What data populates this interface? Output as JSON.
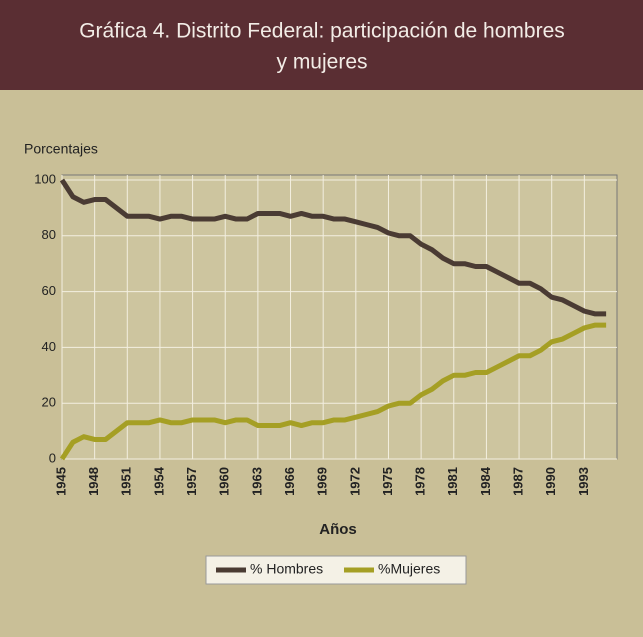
{
  "chart_data": {
    "type": "line",
    "title": "Gráfica 4.  Distrito Federal: participación de hombres",
    "subtitle": "y mujeres",
    "ylabel": "Porcentajes",
    "xlabel": "Años",
    "x": [
      1945,
      1946,
      1947,
      1948,
      1949,
      1950,
      1951,
      1952,
      1953,
      1954,
      1955,
      1956,
      1957,
      1958,
      1959,
      1960,
      1961,
      1962,
      1963,
      1964,
      1965,
      1966,
      1967,
      1968,
      1969,
      1970,
      1971,
      1972,
      1973,
      1974,
      1975,
      1976,
      1977,
      1978,
      1979,
      1980,
      1981,
      1982,
      1983,
      1984,
      1985,
      1986,
      1987,
      1988,
      1989,
      1990,
      1991,
      1992,
      1993,
      1994,
      1995
    ],
    "series": [
      {
        "name": "% Hombres",
        "color": "#4a3b33",
        "values": [
          100,
          94,
          92,
          93,
          93,
          90,
          87,
          87,
          87,
          86,
          87,
          87,
          86,
          86,
          86,
          87,
          86,
          86,
          88,
          88,
          88,
          87,
          88,
          87,
          87,
          86,
          86,
          85,
          84,
          83,
          81,
          80,
          80,
          77,
          75,
          72,
          70,
          70,
          69,
          69,
          67,
          65,
          63,
          63,
          61,
          58,
          57,
          55,
          53,
          52,
          52
        ]
      },
      {
        "name": "%Mujeres",
        "color": "#a59f24",
        "values": [
          0,
          6,
          8,
          7,
          7,
          10,
          13,
          13,
          13,
          14,
          13,
          13,
          14,
          14,
          14,
          13,
          14,
          14,
          12,
          12,
          12,
          13,
          12,
          13,
          13,
          14,
          14,
          15,
          16,
          17,
          19,
          20,
          20,
          23,
          25,
          28,
          30,
          30,
          31,
          31,
          33,
          35,
          37,
          37,
          39,
          42,
          43,
          45,
          47,
          48,
          48
        ]
      }
    ],
    "xlim": [
      1945,
      1996
    ],
    "ylim": [
      0,
      100
    ],
    "xticks": [
      1945,
      1948,
      1951,
      1954,
      1957,
      1960,
      1963,
      1966,
      1969,
      1972,
      1975,
      1978,
      1981,
      1984,
      1987,
      1990,
      1993
    ],
    "yticks": [
      0,
      20,
      40,
      60,
      80,
      100
    ],
    "grid": true
  }
}
